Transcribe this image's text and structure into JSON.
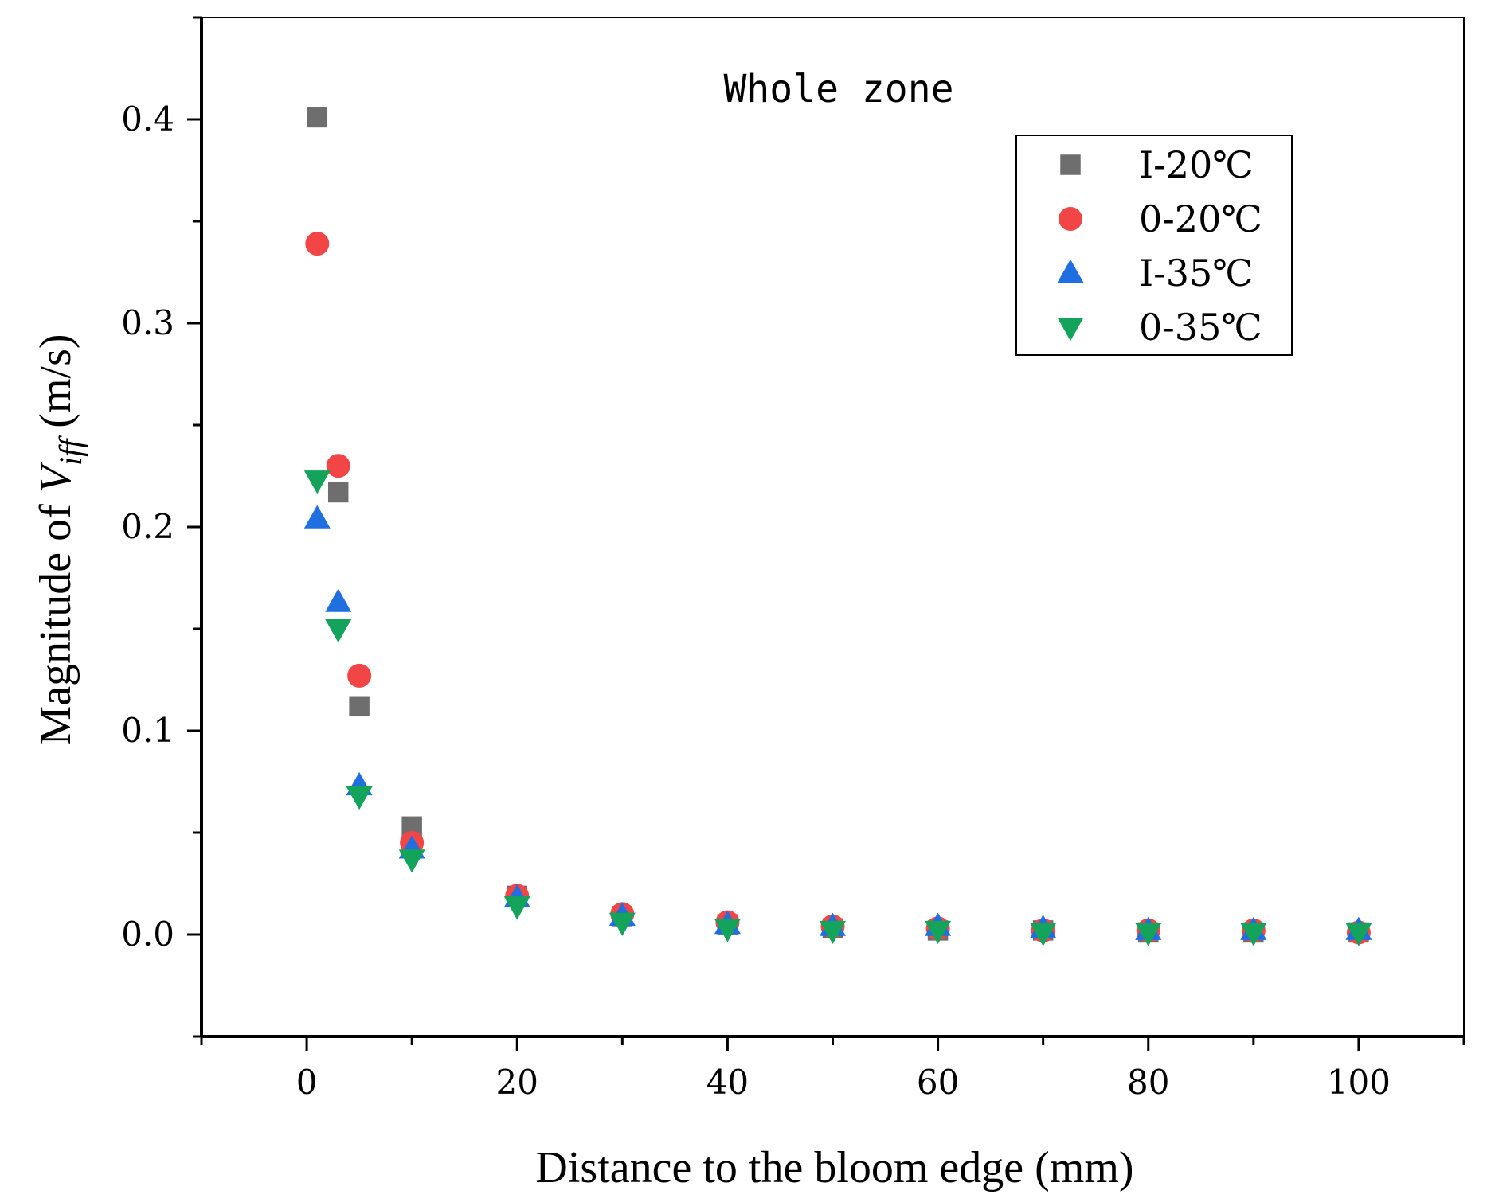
{
  "chart_data": {
    "type": "scatter",
    "title": "",
    "annotation": "Whole zone",
    "xlabel": "Distance to the bloom edge (mm)",
    "ylabel": {
      "prefix": "Magnitude of ",
      "symbol": "V",
      "subscript": "iff",
      "suffix": " (m/s)"
    },
    "xlim": [
      -10,
      110
    ],
    "ylim": [
      -0.05,
      0.45
    ],
    "xticks": [
      0,
      20,
      40,
      60,
      80,
      100
    ],
    "xtick_labels": [
      "0",
      "20",
      "40",
      "60",
      "80",
      "100"
    ],
    "yticks": [
      0.0,
      0.1,
      0.2,
      0.3,
      0.4
    ],
    "ytick_labels": [
      "0.0",
      "0.1",
      "0.2",
      "0.3",
      "0.4"
    ],
    "x": [
      1,
      3,
      5,
      10,
      20,
      30,
      40,
      50,
      60,
      70,
      80,
      90,
      100
    ],
    "legend_position": "top-right",
    "series": [
      {
        "name": "I-20℃",
        "marker": "square",
        "color": "#6e6e6e",
        "values": [
          0.401,
          0.217,
          0.112,
          0.053,
          0.019,
          0.009,
          0.005,
          0.003,
          0.002,
          0.002,
          0.001,
          0.001,
          0.001
        ]
      },
      {
        "name": "0-20℃",
        "marker": "circle",
        "color": "#f24545",
        "values": [
          0.339,
          0.23,
          0.127,
          0.045,
          0.019,
          0.01,
          0.006,
          0.004,
          0.003,
          0.002,
          0.002,
          0.002,
          0.001
        ]
      },
      {
        "name": "I-35℃",
        "marker": "triangle-up",
        "color": "#1f6fe0",
        "values": [
          0.204,
          0.163,
          0.073,
          0.042,
          0.018,
          0.009,
          0.005,
          0.004,
          0.004,
          0.003,
          0.002,
          0.002,
          0.002
        ]
      },
      {
        "name": "0-35℃",
        "marker": "triangle-down",
        "color": "#13a35a",
        "values": [
          0.223,
          0.15,
          0.068,
          0.037,
          0.014,
          0.006,
          0.003,
          0.002,
          0.002,
          0.001,
          0.001,
          0.001,
          0.001
        ]
      }
    ]
  }
}
